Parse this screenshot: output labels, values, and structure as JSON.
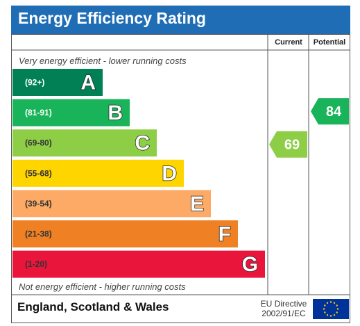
{
  "header": {
    "title": "Energy Efficiency Rating"
  },
  "columns": {
    "current": "Current",
    "potential": "Potential"
  },
  "captions": {
    "top": "Very energy efficient - lower running costs",
    "bottom": "Not energy efficient - higher running costs"
  },
  "footer": {
    "region": "England, Scotland & Wales",
    "directive_line1": "EU Directive",
    "directive_line2": "2002/91/EC"
  },
  "colors": {
    "header": "#1f6db5",
    "eu_flag": "#003399",
    "eu_stars": "#ffcc00"
  },
  "chart_data": {
    "type": "bar",
    "bands": [
      {
        "letter": "A",
        "range": "(92+)",
        "min": 92,
        "max": 100,
        "color": "#008054"
      },
      {
        "letter": "B",
        "range": "(81-91)",
        "min": 81,
        "max": 91,
        "color": "#19b459"
      },
      {
        "letter": "C",
        "range": "(69-80)",
        "min": 69,
        "max": 80,
        "color": "#8dce46"
      },
      {
        "letter": "D",
        "range": "(55-68)",
        "min": 55,
        "max": 68,
        "color": "#ffd500"
      },
      {
        "letter": "E",
        "range": "(39-54)",
        "min": 39,
        "max": 54,
        "color": "#fcaa65"
      },
      {
        "letter": "F",
        "range": "(21-38)",
        "min": 21,
        "max": 38,
        "color": "#ef8023"
      },
      {
        "letter": "G",
        "range": "(1-20)",
        "min": 1,
        "max": 20,
        "color": "#e9153b"
      }
    ],
    "current": {
      "value": 69,
      "band": "C",
      "color": "#8dce46"
    },
    "potential": {
      "value": 84,
      "band": "B",
      "color": "#19b459"
    }
  }
}
